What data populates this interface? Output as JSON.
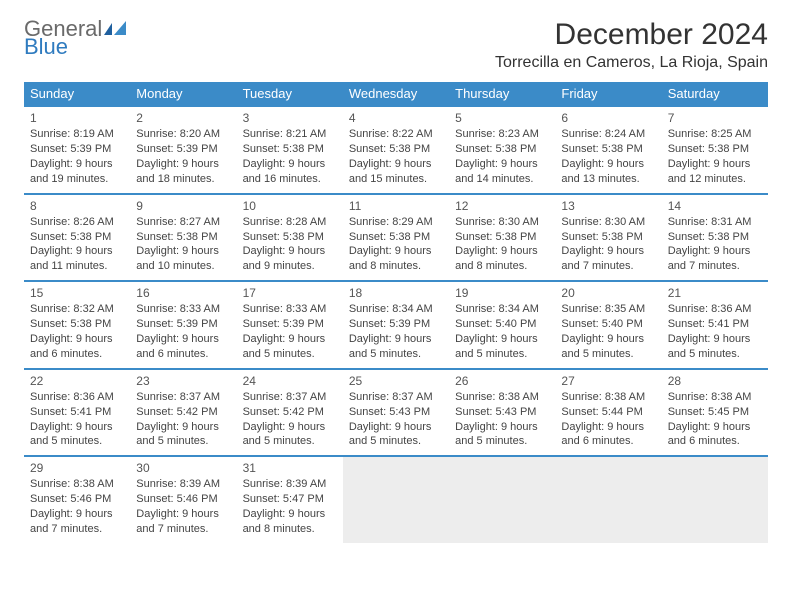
{
  "logo": {
    "line1": "General",
    "line2": "Blue"
  },
  "title": "December 2024",
  "location": "Torrecilla en Cameros, La Rioja, Spain",
  "colors": {
    "header_bg": "#3b8bc8",
    "header_text": "#ffffff",
    "divider": "#3b8bc8",
    "body_text": "#444444",
    "empty_bg": "#ededed",
    "logo_gray": "#6a6a6a",
    "logo_blue": "#2f7bbf"
  },
  "day_headers": [
    "Sunday",
    "Monday",
    "Tuesday",
    "Wednesday",
    "Thursday",
    "Friday",
    "Saturday"
  ],
  "weeks": [
    [
      {
        "day": "1",
        "sunrise": "Sunrise: 8:19 AM",
        "sunset": "Sunset: 5:39 PM",
        "dl1": "Daylight: 9 hours",
        "dl2": "and 19 minutes."
      },
      {
        "day": "2",
        "sunrise": "Sunrise: 8:20 AM",
        "sunset": "Sunset: 5:39 PM",
        "dl1": "Daylight: 9 hours",
        "dl2": "and 18 minutes."
      },
      {
        "day": "3",
        "sunrise": "Sunrise: 8:21 AM",
        "sunset": "Sunset: 5:38 PM",
        "dl1": "Daylight: 9 hours",
        "dl2": "and 16 minutes."
      },
      {
        "day": "4",
        "sunrise": "Sunrise: 8:22 AM",
        "sunset": "Sunset: 5:38 PM",
        "dl1": "Daylight: 9 hours",
        "dl2": "and 15 minutes."
      },
      {
        "day": "5",
        "sunrise": "Sunrise: 8:23 AM",
        "sunset": "Sunset: 5:38 PM",
        "dl1": "Daylight: 9 hours",
        "dl2": "and 14 minutes."
      },
      {
        "day": "6",
        "sunrise": "Sunrise: 8:24 AM",
        "sunset": "Sunset: 5:38 PM",
        "dl1": "Daylight: 9 hours",
        "dl2": "and 13 minutes."
      },
      {
        "day": "7",
        "sunrise": "Sunrise: 8:25 AM",
        "sunset": "Sunset: 5:38 PM",
        "dl1": "Daylight: 9 hours",
        "dl2": "and 12 minutes."
      }
    ],
    [
      {
        "day": "8",
        "sunrise": "Sunrise: 8:26 AM",
        "sunset": "Sunset: 5:38 PM",
        "dl1": "Daylight: 9 hours",
        "dl2": "and 11 minutes."
      },
      {
        "day": "9",
        "sunrise": "Sunrise: 8:27 AM",
        "sunset": "Sunset: 5:38 PM",
        "dl1": "Daylight: 9 hours",
        "dl2": "and 10 minutes."
      },
      {
        "day": "10",
        "sunrise": "Sunrise: 8:28 AM",
        "sunset": "Sunset: 5:38 PM",
        "dl1": "Daylight: 9 hours",
        "dl2": "and 9 minutes."
      },
      {
        "day": "11",
        "sunrise": "Sunrise: 8:29 AM",
        "sunset": "Sunset: 5:38 PM",
        "dl1": "Daylight: 9 hours",
        "dl2": "and 8 minutes."
      },
      {
        "day": "12",
        "sunrise": "Sunrise: 8:30 AM",
        "sunset": "Sunset: 5:38 PM",
        "dl1": "Daylight: 9 hours",
        "dl2": "and 8 minutes."
      },
      {
        "day": "13",
        "sunrise": "Sunrise: 8:30 AM",
        "sunset": "Sunset: 5:38 PM",
        "dl1": "Daylight: 9 hours",
        "dl2": "and 7 minutes."
      },
      {
        "day": "14",
        "sunrise": "Sunrise: 8:31 AM",
        "sunset": "Sunset: 5:38 PM",
        "dl1": "Daylight: 9 hours",
        "dl2": "and 7 minutes."
      }
    ],
    [
      {
        "day": "15",
        "sunrise": "Sunrise: 8:32 AM",
        "sunset": "Sunset: 5:38 PM",
        "dl1": "Daylight: 9 hours",
        "dl2": "and 6 minutes."
      },
      {
        "day": "16",
        "sunrise": "Sunrise: 8:33 AM",
        "sunset": "Sunset: 5:39 PM",
        "dl1": "Daylight: 9 hours",
        "dl2": "and 6 minutes."
      },
      {
        "day": "17",
        "sunrise": "Sunrise: 8:33 AM",
        "sunset": "Sunset: 5:39 PM",
        "dl1": "Daylight: 9 hours",
        "dl2": "and 5 minutes."
      },
      {
        "day": "18",
        "sunrise": "Sunrise: 8:34 AM",
        "sunset": "Sunset: 5:39 PM",
        "dl1": "Daylight: 9 hours",
        "dl2": "and 5 minutes."
      },
      {
        "day": "19",
        "sunrise": "Sunrise: 8:34 AM",
        "sunset": "Sunset: 5:40 PM",
        "dl1": "Daylight: 9 hours",
        "dl2": "and 5 minutes."
      },
      {
        "day": "20",
        "sunrise": "Sunrise: 8:35 AM",
        "sunset": "Sunset: 5:40 PM",
        "dl1": "Daylight: 9 hours",
        "dl2": "and 5 minutes."
      },
      {
        "day": "21",
        "sunrise": "Sunrise: 8:36 AM",
        "sunset": "Sunset: 5:41 PM",
        "dl1": "Daylight: 9 hours",
        "dl2": "and 5 minutes."
      }
    ],
    [
      {
        "day": "22",
        "sunrise": "Sunrise: 8:36 AM",
        "sunset": "Sunset: 5:41 PM",
        "dl1": "Daylight: 9 hours",
        "dl2": "and 5 minutes."
      },
      {
        "day": "23",
        "sunrise": "Sunrise: 8:37 AM",
        "sunset": "Sunset: 5:42 PM",
        "dl1": "Daylight: 9 hours",
        "dl2": "and 5 minutes."
      },
      {
        "day": "24",
        "sunrise": "Sunrise: 8:37 AM",
        "sunset": "Sunset: 5:42 PM",
        "dl1": "Daylight: 9 hours",
        "dl2": "and 5 minutes."
      },
      {
        "day": "25",
        "sunrise": "Sunrise: 8:37 AM",
        "sunset": "Sunset: 5:43 PM",
        "dl1": "Daylight: 9 hours",
        "dl2": "and 5 minutes."
      },
      {
        "day": "26",
        "sunrise": "Sunrise: 8:38 AM",
        "sunset": "Sunset: 5:43 PM",
        "dl1": "Daylight: 9 hours",
        "dl2": "and 5 minutes."
      },
      {
        "day": "27",
        "sunrise": "Sunrise: 8:38 AM",
        "sunset": "Sunset: 5:44 PM",
        "dl1": "Daylight: 9 hours",
        "dl2": "and 6 minutes."
      },
      {
        "day": "28",
        "sunrise": "Sunrise: 8:38 AM",
        "sunset": "Sunset: 5:45 PM",
        "dl1": "Daylight: 9 hours",
        "dl2": "and 6 minutes."
      }
    ],
    [
      {
        "day": "29",
        "sunrise": "Sunrise: 8:38 AM",
        "sunset": "Sunset: 5:46 PM",
        "dl1": "Daylight: 9 hours",
        "dl2": "and 7 minutes."
      },
      {
        "day": "30",
        "sunrise": "Sunrise: 8:39 AM",
        "sunset": "Sunset: 5:46 PM",
        "dl1": "Daylight: 9 hours",
        "dl2": "and 7 minutes."
      },
      {
        "day": "31",
        "sunrise": "Sunrise: 8:39 AM",
        "sunset": "Sunset: 5:47 PM",
        "dl1": "Daylight: 9 hours",
        "dl2": "and 8 minutes."
      },
      null,
      null,
      null,
      null
    ]
  ]
}
